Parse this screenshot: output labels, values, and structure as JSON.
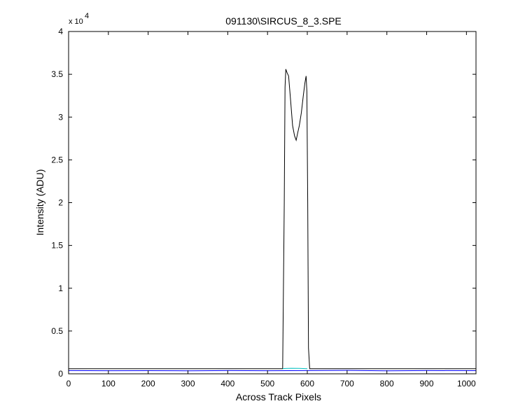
{
  "chart_data": {
    "type": "line",
    "title": "091130\\SIRCUS_8_3.SPE",
    "xlabel": "Across Track Pixels",
    "ylabel": "Intensity (ADU)",
    "xlim": [
      0,
      1024
    ],
    "ylim": [
      0,
      40000
    ],
    "x_ticks": [
      0,
      100,
      200,
      300,
      400,
      500,
      600,
      700,
      800,
      900,
      1000
    ],
    "y_ticks": [
      0,
      5000,
      10000,
      15000,
      20000,
      25000,
      30000,
      35000,
      40000
    ],
    "y_tick_labels": [
      "0",
      "0.5",
      "1",
      "1.5",
      "2",
      "2.5",
      "3",
      "3.5",
      "4"
    ],
    "y_multiplier_base": "x 10",
    "y_multiplier_exp": "4",
    "grid": false,
    "series": [
      {
        "color": "#000000",
        "x": [
          0,
          100,
          200,
          300,
          400,
          500,
          538,
          542,
          544,
          546,
          549,
          553,
          558,
          563,
          568,
          572,
          576,
          580,
          585,
          590,
          594,
          597,
          599,
          601,
          603,
          606,
          620,
          700,
          800,
          900,
          1024
        ],
        "y": [
          600,
          600,
          600,
          600,
          600,
          600,
          600,
          20000,
          33500,
          35600,
          35200,
          34800,
          32000,
          29000,
          27800,
          27300,
          28200,
          29000,
          30500,
          32500,
          34000,
          34800,
          33000,
          20000,
          3000,
          600,
          600,
          600,
          600,
          600,
          600
        ]
      },
      {
        "color": "#0000ff",
        "x": [
          0,
          100,
          200,
          300,
          400,
          500,
          600,
          700,
          800,
          900,
          1024
        ],
        "y": [
          380,
          360,
          370,
          350,
          380,
          360,
          380,
          400,
          350,
          380,
          370
        ]
      },
      {
        "color": "#00bfbf",
        "x": [
          538,
          545,
          560,
          580,
          600
        ],
        "y": [
          600,
          620,
          650,
          630,
          600
        ]
      }
    ]
  }
}
